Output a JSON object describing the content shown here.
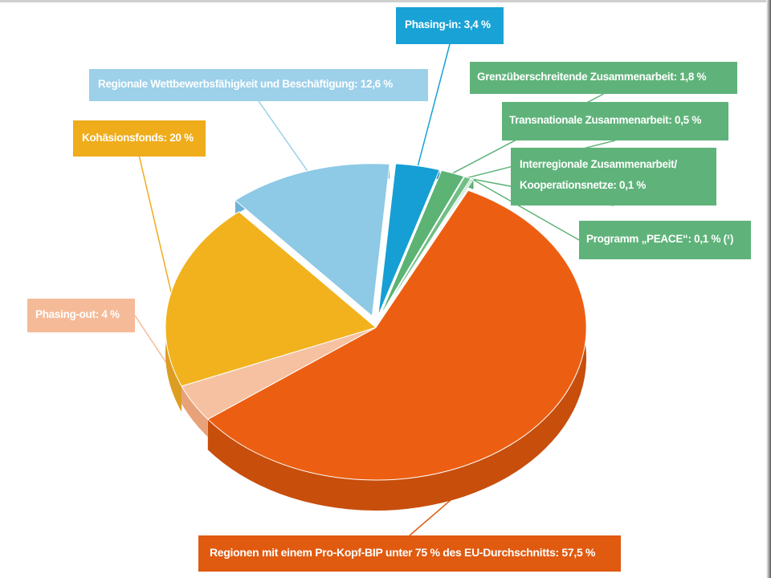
{
  "chart_data": {
    "type": "pie",
    "style": "3d exploded pie",
    "slices": [
      {
        "key": "regionen",
        "label": "Regionen mit einem Pro-Kopf-BIP unter 75 % des EU-Durchschnitts: 57,5 %",
        "value": 57.5,
        "color": "#ec5f12",
        "side_color": "#c84e0c",
        "box_color": "#e05a10"
      },
      {
        "key": "phasing_out",
        "label": "Phasing-out: 4 %",
        "value": 4,
        "color": "#f6c1a0",
        "side_color": "#e7a27a",
        "box_color": "#f5bb98"
      },
      {
        "key": "kohaesion",
        "label": "Kohäsionsfonds: 20 %",
        "value": 20,
        "color": "#f1b21e",
        "side_color": "#dc9d23",
        "box_color": "#efac1b"
      },
      {
        "key": "regionale",
        "label": "Regionale Wettbewerbsfähigkeit und Beschäftigung: 12,6 %",
        "value": 12.6,
        "color": "#8ec9e5",
        "side_color": "#6cb3d6",
        "box_color": "#9dd0e9"
      },
      {
        "key": "phasing_in",
        "label": "Phasing-in: 3,4 %",
        "value": 3.4,
        "color": "#159fd5",
        "side_color": "#0e86b8",
        "box_color": "#19a2d6"
      },
      {
        "key": "grenz",
        "label": "Grenzüberschreitende Zusammenarbeit: 1,8 %",
        "value": 1.8,
        "color": "#5cb374",
        "side_color": "#47a062",
        "box_color": "#5fb37a"
      },
      {
        "key": "trans",
        "label": "Transnationale Zusammenarbeit: 0,5 %",
        "value": 0.5,
        "color": "#71bf85",
        "side_color": "#55a66c",
        "box_color": "#5fb37a"
      },
      {
        "key": "inter",
        "label_lines": [
          "Interregionale Zusammenarbeit/",
          "Kooperationsnetze: 0,1 %"
        ],
        "value": 0.1,
        "color": "#5cb374",
        "side_color": "#47a062",
        "box_color": "#5fb37a"
      },
      {
        "key": "peace",
        "label": "Programm „PEACE“: 0,1 % (¹)",
        "value": 0.1,
        "color": "#71bf85",
        "side_color": "#55a66c",
        "box_color": "#5fb37a"
      }
    ]
  }
}
